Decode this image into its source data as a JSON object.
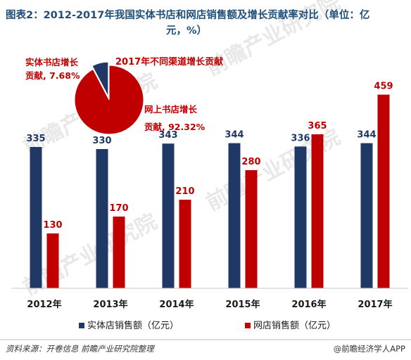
{
  "title_line1": "图表2：2012-2017年我国实体书店和网店销售额及增长贡献率对比（单位：亿",
  "title_line2": "元，%）",
  "source": "资料来源：开卷信息 前瞻产业研究院整理",
  "brand": "@前瞻经济学人APP",
  "watermark_text": "前瞻产业研究院",
  "colors": {
    "physical": "#1f3864",
    "online": "#c00000"
  },
  "chart_data": [
    {
      "type": "bar",
      "categories": [
        "2012年",
        "2013年",
        "2014年",
        "2015年",
        "2016年",
        "2017年"
      ],
      "series": [
        {
          "name": "实体店销售额（亿元）",
          "values": [
            335,
            330,
            343,
            344,
            336,
            344
          ]
        },
        {
          "name": "网店销售额（亿元）",
          "values": [
            130,
            170,
            210,
            280,
            365,
            459
          ]
        }
      ],
      "ylim": [
        0,
        500
      ],
      "grid": false,
      "legend_position": "bottom"
    },
    {
      "type": "pie",
      "title": "2017年不同渠道增长贡献",
      "slices": [
        {
          "label_line1": "实体书店增长",
          "label_line2": "贡献, 7.68%",
          "value": 7.68
        },
        {
          "label_line1": "网上书店增长",
          "label_line2": "贡献, 92.32%",
          "value": 92.32
        }
      ]
    }
  ]
}
